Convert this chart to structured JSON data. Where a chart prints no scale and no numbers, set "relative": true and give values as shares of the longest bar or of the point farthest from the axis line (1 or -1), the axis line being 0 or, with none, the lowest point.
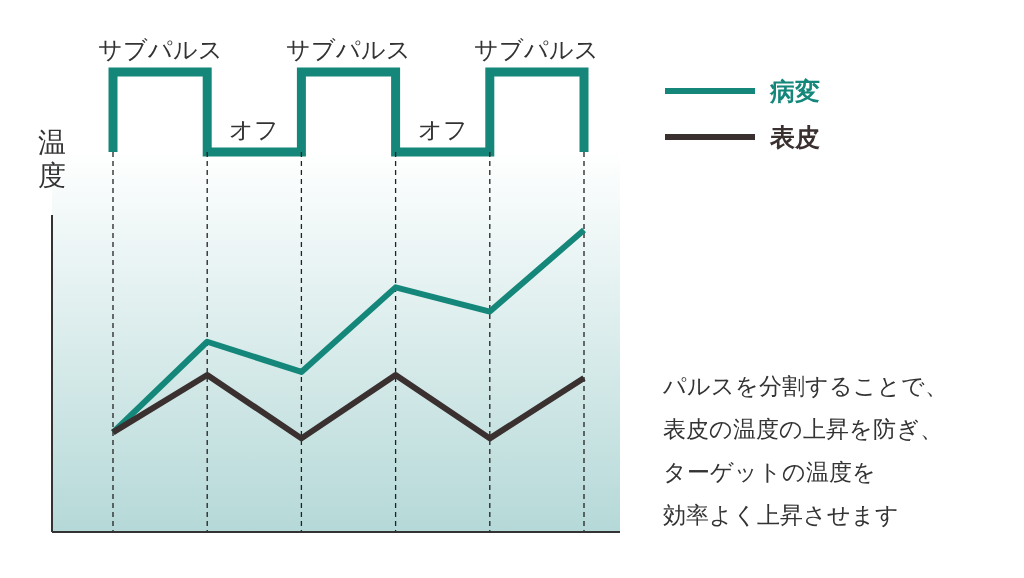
{
  "chart_data": {
    "type": "line",
    "ylabel": "温度",
    "relative": true,
    "categories": [
      null,
      null,
      null,
      null,
      null,
      null
    ],
    "series": [
      {
        "name": "病変",
        "color": "#14877a",
        "values": [
          0.33,
          0.63,
          0.53,
          0.81,
          0.73,
          1.0
        ]
      },
      {
        "name": "表皮",
        "color": "#3a3030",
        "values": [
          0.33,
          0.52,
          0.31,
          0.52,
          0.31,
          0.51
        ]
      }
    ],
    "annotations": [
      "サブパルス",
      "オフ",
      "サブパルス",
      "オフ",
      "サブパルス",
      "パルスを分割することで、",
      "表皮の温度の上昇を防ぎ、",
      "ターゲットの温度を",
      "効率よく上昇させます"
    ],
    "grid": "x",
    "legend": "top right",
    "marker": "none",
    "line_style": "solid"
  }
}
